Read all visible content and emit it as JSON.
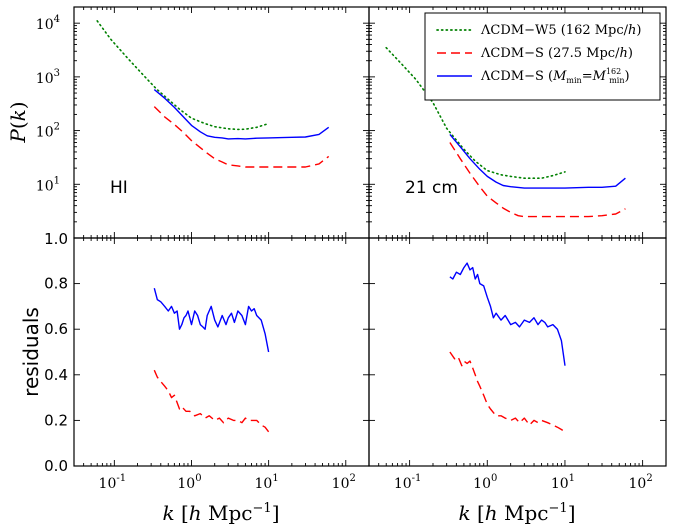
{
  "chart_data": {
    "type": "line",
    "x_axis": {
      "label": "k [h Mpc^-1]",
      "scale": "log",
      "range": [
        0.03,
        200
      ],
      "ticks": [
        0.1,
        1,
        10,
        100
      ],
      "tick_labels": [
        "10^-1",
        "10^0",
        "10^1",
        "10^2"
      ]
    },
    "top_y_axis": {
      "label": "P(k)",
      "scale": "log",
      "range": [
        1.0,
        20000
      ],
      "ticks": [
        1,
        10,
        100,
        1000,
        10000
      ],
      "tick_labels": [
        "1.0",
        "10^1",
        "10^2",
        "10^3",
        "10^4"
      ]
    },
    "bottom_y_axis": {
      "label": "residuals",
      "scale": "linear",
      "range": [
        0.0,
        1.0
      ],
      "ticks": [
        0.0,
        0.2,
        0.4,
        0.6,
        0.8
      ],
      "tick_labels": [
        "0.0",
        "0.2",
        "0.4",
        "0.6",
        "0.8"
      ]
    },
    "legend": {
      "placement": "top-right",
      "entries": [
        {
          "key": "w5",
          "label": "ΛCDM−W5 (162 Mpc/h)",
          "color": "#008000",
          "style": "dotted"
        },
        {
          "key": "s",
          "label": "ΛCDM−S (27.5 Mpc/h)",
          "color": "#ff0000",
          "style": "dashed"
        },
        {
          "key": "smin",
          "label": "ΛCDM−S (Mmin=Mmin^162)",
          "color": "#0000ff",
          "style": "solid"
        }
      ]
    },
    "panels": [
      {
        "id": "top-left",
        "annotation": "HI",
        "kind": "power",
        "series": [
          {
            "key": "w5",
            "points": [
              [
                0.06,
                11000
              ],
              [
                0.09,
                5000
              ],
              [
                0.15,
                2200
              ],
              [
                0.25,
                1000
              ],
              [
                0.35,
                600
              ],
              [
                0.5,
                380
              ],
              [
                0.7,
                250
              ],
              [
                1.0,
                170
              ],
              [
                1.5,
                135
              ],
              [
                2.0,
                118
              ],
              [
                3.0,
                108
              ],
              [
                4.0,
                105
              ],
              [
                5.0,
                106
              ],
              [
                7.0,
                115
              ],
              [
                10.0,
                135
              ]
            ]
          },
          {
            "key": "s",
            "points": [
              [
                0.33,
                280
              ],
              [
                0.45,
                180
              ],
              [
                0.6,
                130
              ],
              [
                0.8,
                90
              ],
              [
                1.0,
                65
              ],
              [
                1.3,
                48
              ],
              [
                1.6,
                38
              ],
              [
                2.0,
                30
              ],
              [
                2.5,
                26
              ],
              [
                3.0,
                23
              ],
              [
                4.0,
                22
              ],
              [
                5.0,
                21
              ],
              [
                7.0,
                21
              ],
              [
                10.0,
                21
              ],
              [
                15.0,
                21
              ],
              [
                20.0,
                21
              ],
              [
                30.0,
                21
              ],
              [
                45.0,
                24
              ],
              [
                60.0,
                33
              ]
            ]
          },
          {
            "key": "smin",
            "points": [
              [
                0.33,
                580
              ],
              [
                0.45,
                400
              ],
              [
                0.6,
                270
              ],
              [
                0.8,
                175
              ],
              [
                1.0,
                125
              ],
              [
                1.3,
                95
              ],
              [
                1.6,
                80
              ],
              [
                2.0,
                75
              ],
              [
                2.5,
                73
              ],
              [
                3.0,
                70
              ],
              [
                4.0,
                71
              ],
              [
                5.0,
                70
              ],
              [
                7.0,
                72
              ],
              [
                10.0,
                73
              ],
              [
                15.0,
                74
              ],
              [
                20.0,
                75
              ],
              [
                30.0,
                76
              ],
              [
                45.0,
                85
              ],
              [
                60.0,
                115
              ]
            ]
          }
        ]
      },
      {
        "id": "top-right",
        "annotation": "21 cm",
        "kind": "power",
        "series": [
          {
            "key": "w5",
            "points": [
              [
                0.05,
                3500
              ],
              [
                0.08,
                1700
              ],
              [
                0.12,
                900
              ],
              [
                0.2,
                330
              ],
              [
                0.3,
                110
              ],
              [
                0.5,
                45
              ],
              [
                0.7,
                27
              ],
              [
                1.0,
                18
              ],
              [
                1.5,
                15
              ],
              [
                2.0,
                14
              ],
              [
                3.0,
                13
              ],
              [
                5.0,
                13
              ],
              [
                7.0,
                14.5
              ],
              [
                10.0,
                17
              ]
            ]
          },
          {
            "key": "s",
            "points": [
              [
                0.33,
                60
              ],
              [
                0.45,
                30
              ],
              [
                0.6,
                16
              ],
              [
                0.8,
                9
              ],
              [
                1.0,
                6
              ],
              [
                1.3,
                4.5
              ],
              [
                1.6,
                3.6
              ],
              [
                2.0,
                3.0
              ],
              [
                2.5,
                2.6
              ],
              [
                3.0,
                2.5
              ],
              [
                5.0,
                2.5
              ],
              [
                10.0,
                2.5
              ],
              [
                20.0,
                2.5
              ],
              [
                30.0,
                2.6
              ],
              [
                45.0,
                2.8
              ],
              [
                60.0,
                3.5
              ]
            ]
          },
          {
            "key": "smin",
            "points": [
              [
                0.33,
                85
              ],
              [
                0.45,
                50
              ],
              [
                0.6,
                30
              ],
              [
                0.8,
                19
              ],
              [
                1.0,
                14
              ],
              [
                1.3,
                11
              ],
              [
                1.6,
                9.5
              ],
              [
                2.0,
                9
              ],
              [
                3.0,
                8.5
              ],
              [
                5.0,
                8.5
              ],
              [
                10.0,
                8.5
              ],
              [
                20.0,
                8.8
              ],
              [
                30.0,
                8.8
              ],
              [
                45.0,
                9.2
              ],
              [
                60.0,
                13
              ]
            ]
          }
        ]
      },
      {
        "id": "bottom-left",
        "annotation": "",
        "kind": "residuals",
        "series": [
          {
            "key": "s",
            "points": [
              [
                0.33,
                0.42
              ],
              [
                0.36,
                0.39
              ],
              [
                0.4,
                0.37
              ],
              [
                0.45,
                0.35
              ],
              [
                0.5,
                0.33
              ],
              [
                0.55,
                0.3
              ],
              [
                0.6,
                0.31
              ],
              [
                0.7,
                0.25
              ],
              [
                0.75,
                0.26
              ],
              [
                0.85,
                0.24
              ],
              [
                0.95,
                0.24
              ],
              [
                1.1,
                0.22
              ],
              [
                1.3,
                0.23
              ],
              [
                1.5,
                0.21
              ],
              [
                1.7,
                0.22
              ],
              [
                2.0,
                0.2
              ],
              [
                2.3,
                0.21
              ],
              [
                2.6,
                0.19
              ],
              [
                3.0,
                0.21
              ],
              [
                3.5,
                0.2
              ],
              [
                4.0,
                0.2
              ],
              [
                4.5,
                0.19
              ],
              [
                5.0,
                0.21
              ],
              [
                5.5,
                0.2
              ],
              [
                6.0,
                0.2
              ],
              [
                7.0,
                0.2
              ],
              [
                8.0,
                0.18
              ],
              [
                9.0,
                0.17
              ],
              [
                10.0,
                0.15
              ]
            ]
          },
          {
            "key": "smin",
            "points": [
              [
                0.33,
                0.78
              ],
              [
                0.36,
                0.73
              ],
              [
                0.4,
                0.72
              ],
              [
                0.45,
                0.7
              ],
              [
                0.5,
                0.68
              ],
              [
                0.55,
                0.7
              ],
              [
                0.6,
                0.67
              ],
              [
                0.65,
                0.68
              ],
              [
                0.7,
                0.6
              ],
              [
                0.75,
                0.62
              ],
              [
                0.8,
                0.65
              ],
              [
                0.85,
                0.66
              ],
              [
                0.9,
                0.68
              ],
              [
                1.0,
                0.62
              ],
              [
                1.1,
                0.68
              ],
              [
                1.2,
                0.66
              ],
              [
                1.3,
                0.62
              ],
              [
                1.4,
                0.61
              ],
              [
                1.5,
                0.6
              ],
              [
                1.6,
                0.66
              ],
              [
                1.8,
                0.7
              ],
              [
                2.0,
                0.64
              ],
              [
                2.2,
                0.61
              ],
              [
                2.5,
                0.66
              ],
              [
                2.8,
                0.62
              ],
              [
                3.0,
                0.65
              ],
              [
                3.3,
                0.67
              ],
              [
                3.6,
                0.63
              ],
              [
                4.0,
                0.68
              ],
              [
                4.5,
                0.66
              ],
              [
                5.0,
                0.62
              ],
              [
                5.5,
                0.7
              ],
              [
                6.0,
                0.68
              ],
              [
                6.5,
                0.69
              ],
              [
                7.0,
                0.66
              ],
              [
                8.0,
                0.64
              ],
              [
                9.0,
                0.58
              ],
              [
                10.0,
                0.5
              ]
            ]
          }
        ]
      },
      {
        "id": "bottom-right",
        "annotation": "",
        "kind": "residuals",
        "series": [
          {
            "key": "s",
            "points": [
              [
                0.33,
                0.5
              ],
              [
                0.38,
                0.47
              ],
              [
                0.42,
                0.48
              ],
              [
                0.47,
                0.44
              ],
              [
                0.5,
                0.46
              ],
              [
                0.55,
                0.45
              ],
              [
                0.6,
                0.46
              ],
              [
                0.65,
                0.43
              ],
              [
                0.7,
                0.4
              ],
              [
                0.75,
                0.37
              ],
              [
                0.8,
                0.35
              ],
              [
                0.9,
                0.31
              ],
              [
                1.0,
                0.27
              ],
              [
                1.1,
                0.25
              ],
              [
                1.3,
                0.22
              ],
              [
                1.5,
                0.22
              ],
              [
                1.7,
                0.21
              ],
              [
                2.0,
                0.2
              ],
              [
                2.3,
                0.21
              ],
              [
                2.6,
                0.19
              ],
              [
                3.0,
                0.21
              ],
              [
                3.5,
                0.18
              ],
              [
                4.0,
                0.2
              ],
              [
                4.5,
                0.19
              ],
              [
                5.0,
                0.2
              ],
              [
                6.0,
                0.19
              ],
              [
                7.0,
                0.18
              ],
              [
                8.0,
                0.17
              ],
              [
                9.0,
                0.16
              ],
              [
                10.0,
                0.15
              ]
            ]
          },
          {
            "key": "smin",
            "points": [
              [
                0.33,
                0.83
              ],
              [
                0.36,
                0.82
              ],
              [
                0.4,
                0.85
              ],
              [
                0.45,
                0.84
              ],
              [
                0.5,
                0.87
              ],
              [
                0.55,
                0.89
              ],
              [
                0.6,
                0.86
              ],
              [
                0.65,
                0.87
              ],
              [
                0.7,
                0.82
              ],
              [
                0.75,
                0.84
              ],
              [
                0.8,
                0.8
              ],
              [
                0.9,
                0.79
              ],
              [
                1.0,
                0.74
              ],
              [
                1.1,
                0.7
              ],
              [
                1.2,
                0.65
              ],
              [
                1.3,
                0.67
              ],
              [
                1.5,
                0.64
              ],
              [
                1.7,
                0.66
              ],
              [
                2.0,
                0.62
              ],
              [
                2.3,
                0.63
              ],
              [
                2.6,
                0.61
              ],
              [
                3.0,
                0.64
              ],
              [
                3.5,
                0.63
              ],
              [
                4.0,
                0.65
              ],
              [
                4.5,
                0.62
              ],
              [
                5.0,
                0.64
              ],
              [
                5.5,
                0.63
              ],
              [
                6.0,
                0.61
              ],
              [
                7.0,
                0.62
              ],
              [
                8.0,
                0.6
              ],
              [
                9.0,
                0.55
              ],
              [
                10.0,
                0.44
              ]
            ]
          }
        ]
      }
    ]
  }
}
